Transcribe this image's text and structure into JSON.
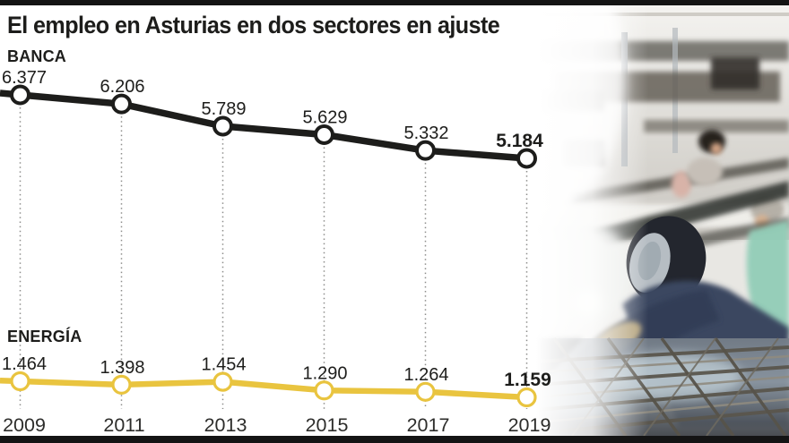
{
  "title": "El empleo en Asturias en dos sectores en ajuste",
  "chart_data": {
    "type": "line",
    "x_labels": [
      "2009",
      "2011",
      "2013",
      "2015",
      "2017",
      "2019"
    ],
    "series": [
      {
        "name": "BANCA",
        "color": "#1d1d1b",
        "values": [
          6377,
          6206,
          5789,
          5629,
          5332,
          5184
        ],
        "value_labels": [
          "6.377",
          "6.206",
          "5.789",
          "5.629",
          "5.332",
          "5.184"
        ]
      },
      {
        "name": "ENERGÍA",
        "color": "#e9c43f",
        "values": [
          1464,
          1398,
          1454,
          1290,
          1264,
          1159
        ],
        "value_labels": [
          "1.464",
          "1.398",
          "1.454",
          "1.290",
          "1.264",
          "1.159"
        ]
      }
    ],
    "highlight_last_value": true,
    "grid": "dotted-vertical",
    "legend_position": "series-labels-left"
  },
  "photo": {
    "name": "bank-office-and-welder-photo"
  }
}
